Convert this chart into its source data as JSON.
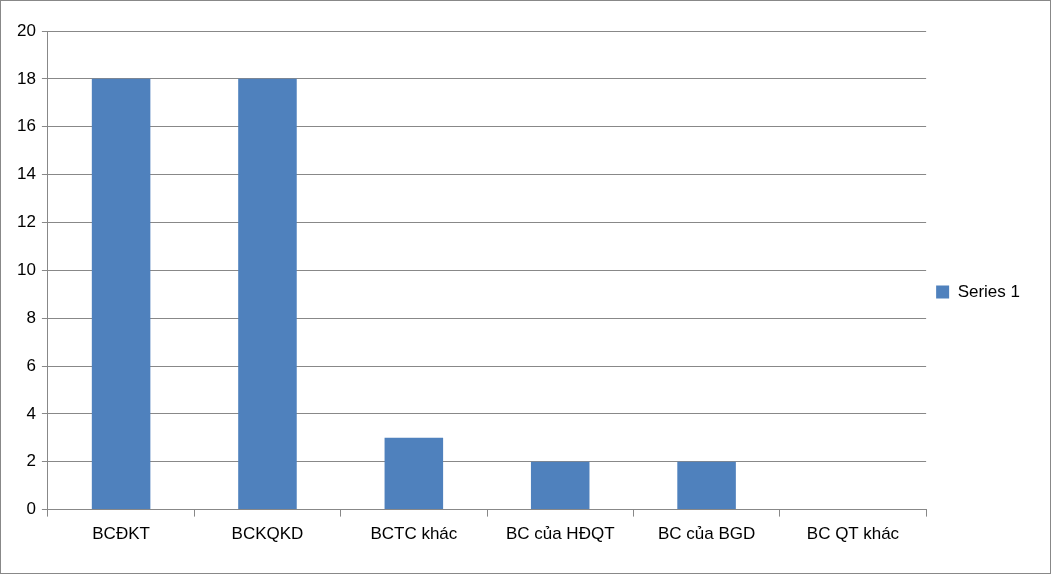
{
  "chart_data": {
    "type": "bar",
    "categories": [
      "BCĐKT",
      "BCKQKD",
      "BCTC khác",
      "BC của HĐQT",
      "BC của BGD",
      "BC QT khác"
    ],
    "series": [
      {
        "name": "Series 1",
        "color": "#4f81bd",
        "values": [
          18,
          18,
          3,
          2,
          2,
          0
        ]
      }
    ],
    "ylim": [
      0,
      20
    ],
    "yticks": [
      0,
      2,
      4,
      6,
      8,
      10,
      12,
      14,
      16,
      18,
      20
    ],
    "grid": "y",
    "legend": "right"
  }
}
